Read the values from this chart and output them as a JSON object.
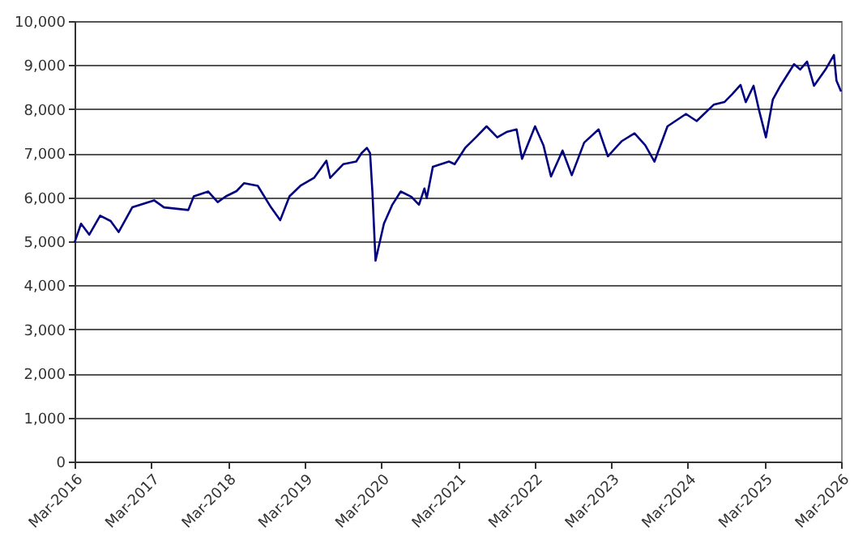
{
  "chart_data": {
    "type": "line",
    "x": [
      "2016-03-01",
      "2016-04-01",
      "2016-05-10",
      "2016-07-01",
      "2016-08-20",
      "2016-09-27",
      "2016-12-01",
      "2017-03-15",
      "2017-05-01",
      "2017-08-25",
      "2017-09-20",
      "2017-11-28",
      "2018-01-12",
      "2018-02-20",
      "2018-04-12",
      "2018-05-18",
      "2018-07-22",
      "2018-09-23",
      "2018-11-06",
      "2018-12-20",
      "2019-02-10",
      "2019-04-16",
      "2019-06-14",
      "2019-07-02",
      "2019-09-02",
      "2019-11-03",
      "2019-11-28",
      "2019-12-24",
      "2020-01-08",
      "2020-01-19",
      "2020-02-03",
      "2020-03-14",
      "2020-04-23",
      "2020-06-02",
      "2020-07-23",
      "2020-08-28",
      "2020-09-23",
      "2020-10-04",
      "2020-11-02",
      "2021-01-18",
      "2021-02-14",
      "2021-04-05",
      "2021-05-26",
      "2021-07-16",
      "2021-09-05",
      "2021-10-19",
      "2021-12-06",
      "2022-01-01",
      "2022-03-04",
      "2022-04-13",
      "2022-05-19",
      "2022-07-13",
      "2022-08-26",
      "2022-10-24",
      "2023-01-01",
      "2023-02-14",
      "2023-04-20",
      "2023-06-21",
      "2023-08-11",
      "2023-09-24",
      "2023-11-25",
      "2024-02-21",
      "2024-04-12",
      "2024-07-02",
      "2024-08-22",
      "2024-09-28",
      "2024-11-07",
      "2024-12-02",
      "2025-01-08",
      "2025-02-03",
      "2025-03-08",
      "2025-04-10",
      "2025-05-16",
      "2025-07-20",
      "2025-08-18",
      "2025-09-20",
      "2025-10-23",
      "2025-12-17",
      "2026-01-26",
      "2026-02-07",
      "2026-03-01"
    ],
    "series": [
      {
        "color": "#000080",
        "values": [
          4970,
          5400,
          5150,
          5580,
          5460,
          5210,
          5770,
          5930,
          5770,
          5710,
          6020,
          6130,
          5890,
          6020,
          6140,
          6320,
          6260,
          5770,
          5480,
          6020,
          6260,
          6440,
          6830,
          6440,
          6750,
          6810,
          7000,
          7120,
          7000,
          6130,
          4560,
          5400,
          5830,
          6130,
          6010,
          5830,
          6200,
          5980,
          6690,
          6810,
          6750,
          7120,
          7360,
          7610,
          7360,
          7480,
          7540,
          6870,
          7610,
          7180,
          6470,
          7060,
          6500,
          7240,
          7540,
          6930,
          7270,
          7450,
          7180,
          6810,
          7610,
          7890,
          7730,
          8100,
          8160,
          8340,
          8550,
          8160,
          8530,
          7980,
          7360,
          8220,
          8530,
          9020,
          8900,
          9080,
          8530,
          8900,
          9230,
          8650,
          8400
        ]
      }
    ],
    "xlim": [
      "2016-03-01",
      "2026-03-01"
    ],
    "xticks": [
      {
        "value": "2016-03-01",
        "label": "Mar-2016"
      },
      {
        "value": "2017-03-01",
        "label": "Mar-2017"
      },
      {
        "value": "2018-03-01",
        "label": "Mar-2018"
      },
      {
        "value": "2019-03-01",
        "label": "Mar-2019"
      },
      {
        "value": "2020-03-01",
        "label": "Mar-2020"
      },
      {
        "value": "2021-03-01",
        "label": "Mar-2021"
      },
      {
        "value": "2022-03-01",
        "label": "Mar-2022"
      },
      {
        "value": "2023-03-01",
        "label": "Mar-2023"
      },
      {
        "value": "2024-03-01",
        "label": "Mar-2024"
      },
      {
        "value": "2025-03-01",
        "label": "Mar-2025"
      },
      {
        "value": "2026-03-01",
        "label": "Mar-2026"
      }
    ],
    "ylim": [
      0,
      10000
    ],
    "yticks": [
      {
        "value": 0,
        "label": "0"
      },
      {
        "value": 1000,
        "label": "1,000"
      },
      {
        "value": 2000,
        "label": "2,000"
      },
      {
        "value": 3000,
        "label": "3,000"
      },
      {
        "value": 4000,
        "label": "4,000"
      },
      {
        "value": 5000,
        "label": "5,000"
      },
      {
        "value": 6000,
        "label": "6,000"
      },
      {
        "value": 7000,
        "label": "7,000"
      },
      {
        "value": 8000,
        "label": "8,000"
      },
      {
        "value": 9000,
        "label": "9,000"
      },
      {
        "value": 10000,
        "label": "10,000"
      }
    ],
    "grid": "y",
    "marker": "none",
    "line_style": "solid"
  }
}
